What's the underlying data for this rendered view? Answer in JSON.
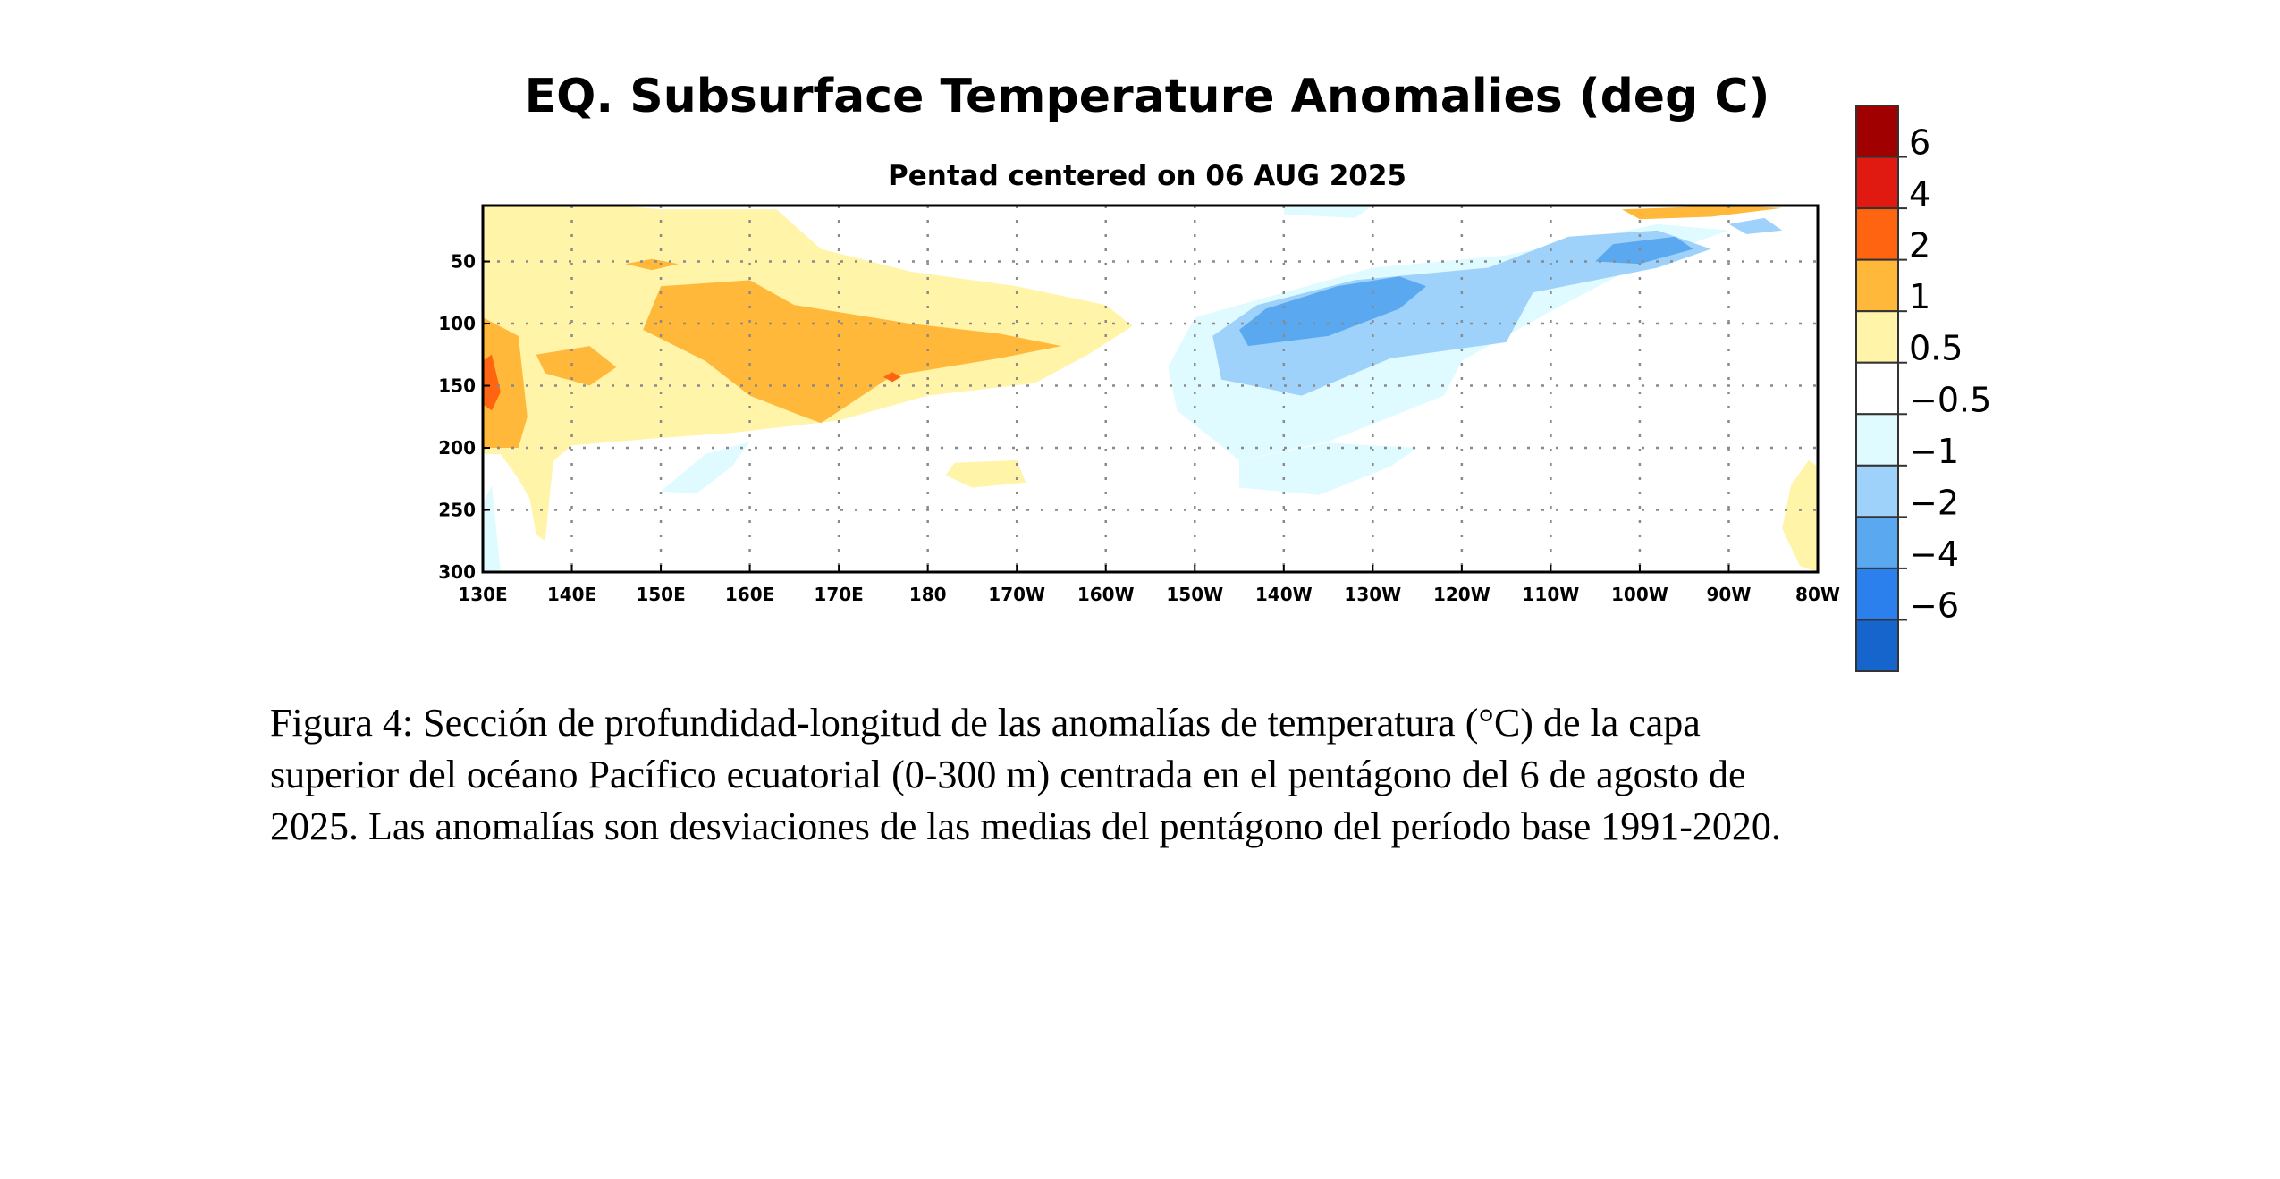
{
  "chart_data": {
    "type": "heatmap",
    "title": "EQ. Subsurface Temperature Anomalies (deg C)",
    "subtitle": "Pentad centered on 06 AUG 2025",
    "xlabel": "",
    "ylabel": "",
    "x_ticks": [
      "130E",
      "140E",
      "150E",
      "160E",
      "170E",
      "180",
      "170W",
      "160W",
      "150W",
      "140W",
      "130W",
      "120W",
      "110W",
      "100W",
      "90W",
      "80W"
    ],
    "x_tick_values": [
      130,
      140,
      150,
      160,
      170,
      180,
      190,
      200,
      210,
      220,
      230,
      240,
      250,
      260,
      270,
      280
    ],
    "xlim": [
      130,
      280
    ],
    "y_ticks": [
      "50",
      "100",
      "150",
      "200",
      "250",
      "300"
    ],
    "y_tick_values": [
      50,
      100,
      150,
      200,
      250,
      300
    ],
    "ylim": [
      300,
      5
    ],
    "grid": true,
    "colorbar": {
      "labels": [
        "6",
        "4",
        "2",
        "1",
        "0.5",
        "−0.5",
        "−1",
        "−2",
        "−4",
        "−6"
      ],
      "colors": [
        "#a00000",
        "#e01a10",
        "#ff6410",
        "#ffb83a",
        "#fff4a8",
        "#ffffff",
        "#e0fbff",
        "#9ed2fa",
        "#5aa9f0",
        "#2b80ee",
        "#1565cc"
      ]
    },
    "regions": [
      {
        "level": 0.5,
        "color": "#fff4a8",
        "points": [
          [
            130,
            5
          ],
          [
            145,
            5
          ],
          [
            150,
            8
          ],
          [
            163,
            8
          ],
          [
            168,
            40
          ],
          [
            178,
            58
          ],
          [
            190,
            70
          ],
          [
            200,
            85
          ],
          [
            203,
            102
          ],
          [
            198,
            125
          ],
          [
            192,
            148
          ],
          [
            180,
            158
          ],
          [
            170,
            178
          ],
          [
            158,
            188
          ],
          [
            150,
            192
          ],
          [
            140,
            198
          ],
          [
            138,
            210
          ],
          [
            136,
            250
          ],
          [
            134,
            225
          ],
          [
            132,
            205
          ],
          [
            130,
            205
          ]
        ]
      },
      {
        "level": 1,
        "color": "#ffb83a",
        "points": [
          [
            130,
            95
          ],
          [
            134,
            110
          ],
          [
            135,
            175
          ],
          [
            134,
            200
          ],
          [
            130,
            200
          ]
        ]
      },
      {
        "level": 1,
        "color": "#ffb83a",
        "points": [
          [
            150,
            70
          ],
          [
            160,
            65
          ],
          [
            165,
            85
          ],
          [
            178,
            100
          ],
          [
            188,
            108
          ],
          [
            195,
            118
          ],
          [
            188,
            128
          ],
          [
            176,
            142
          ],
          [
            168,
            180
          ],
          [
            165,
            172
          ],
          [
            160,
            158
          ],
          [
            155,
            130
          ],
          [
            148,
            105
          ]
        ]
      },
      {
        "level": 1,
        "color": "#ffb83a",
        "points": [
          [
            136,
            125
          ],
          [
            142,
            118
          ],
          [
            145,
            135
          ],
          [
            142,
            150
          ],
          [
            137,
            140
          ]
        ]
      },
      {
        "level": 1,
        "color": "#ffb83a",
        "points": [
          [
            146,
            52
          ],
          [
            149,
            48
          ],
          [
            152,
            52
          ],
          [
            149,
            57
          ]
        ]
      },
      {
        "level": 1,
        "color": "#ffb83a",
        "points": [
          [
            258,
            8
          ],
          [
            270,
            5
          ],
          [
            276,
            7
          ],
          [
            268,
            14
          ],
          [
            260,
            16
          ]
        ]
      },
      {
        "level": 2,
        "color": "#ff6410",
        "points": [
          [
            130,
            130
          ],
          [
            131,
            125
          ],
          [
            132,
            155
          ],
          [
            131,
            170
          ],
          [
            130,
            165
          ]
        ]
      },
      {
        "level": 2,
        "color": "#ff6410",
        "points": [
          [
            175,
            143
          ],
          [
            176,
            139
          ],
          [
            177,
            143
          ],
          [
            176,
            147
          ]
        ]
      },
      {
        "level": 0.5,
        "color": "#fff4a8",
        "points": [
          [
            183,
            212
          ],
          [
            190,
            210
          ],
          [
            191,
            228
          ],
          [
            185,
            232
          ],
          [
            182,
            222
          ]
        ]
      },
      {
        "level": 0.5,
        "color": "#fff4a8",
        "points": [
          [
            277,
            230
          ],
          [
            279,
            210
          ],
          [
            280,
            215
          ],
          [
            280,
            300
          ],
          [
            278,
            295
          ],
          [
            276,
            265
          ]
        ]
      },
      {
        "level": 0.5,
        "color": "#fff4a8",
        "points": [
          [
            136,
            195
          ],
          [
            138,
            205
          ],
          [
            137,
            275
          ],
          [
            136,
            270
          ],
          [
            135,
            230
          ]
        ]
      },
      {
        "level": -0.5,
        "color": "#e0fbff",
        "points": [
          [
            220,
            5
          ],
          [
            230,
            5
          ],
          [
            228,
            15
          ],
          [
            220,
            12
          ]
        ]
      },
      {
        "level": -0.5,
        "color": "#e0fbff",
        "points": [
          [
            210,
            95
          ],
          [
            230,
            55
          ],
          [
            245,
            45
          ],
          [
            262,
            20
          ],
          [
            270,
            25
          ],
          [
            262,
            45
          ],
          [
            250,
            90
          ],
          [
            240,
            130
          ],
          [
            238,
            158
          ],
          [
            225,
            195
          ],
          [
            215,
            210
          ],
          [
            208,
            170
          ],
          [
            207,
            135
          ]
        ]
      },
      {
        "level": -0.5,
        "color": "#e0fbff",
        "points": [
          [
            215,
            210
          ],
          [
            225,
            196
          ],
          [
            235,
            200
          ],
          [
            232,
            215
          ],
          [
            224,
            238
          ],
          [
            215,
            232
          ]
        ]
      },
      {
        "level": -0.5,
        "color": "#e0fbff",
        "points": [
          [
            150,
            235
          ],
          [
            155,
            205
          ],
          [
            160,
            195
          ],
          [
            158,
            215
          ],
          [
            154,
            237
          ]
        ]
      },
      {
        "level": -0.5,
        "color": "#e0fbff",
        "points": [
          [
            131,
            230
          ],
          [
            132,
            300
          ],
          [
            130,
            300
          ],
          [
            130,
            245
          ]
        ]
      },
      {
        "level": -1,
        "color": "#9ed2fa",
        "points": [
          [
            212,
            110
          ],
          [
            217,
            85
          ],
          [
            228,
            65
          ],
          [
            243,
            55
          ],
          [
            252,
            30
          ],
          [
            262,
            25
          ],
          [
            268,
            40
          ],
          [
            262,
            55
          ],
          [
            248,
            75
          ],
          [
            245,
            115
          ],
          [
            232,
            128
          ],
          [
            222,
            158
          ],
          [
            213,
            145
          ]
        ]
      },
      {
        "level": -1,
        "color": "#9ed2fa",
        "points": [
          [
            270,
            20
          ],
          [
            274,
            15
          ],
          [
            276,
            25
          ],
          [
            272,
            28
          ]
        ]
      },
      {
        "level": -2,
        "color": "#5aa9f0",
        "points": [
          [
            215,
            105
          ],
          [
            218,
            88
          ],
          [
            226,
            70
          ],
          [
            233,
            62
          ],
          [
            236,
            70
          ],
          [
            233,
            88
          ],
          [
            225,
            110
          ],
          [
            216,
            118
          ]
        ]
      },
      {
        "level": -2,
        "color": "#5aa9f0",
        "points": [
          [
            255,
            50
          ],
          [
            257,
            36
          ],
          [
            264,
            30
          ],
          [
            266,
            40
          ],
          [
            260,
            52
          ]
        ]
      }
    ]
  },
  "caption": {
    "line1": "Figura 4: Sección de profundidad-longitud de las anomalías de temperatura (°C) de la capa",
    "line2": "superior del océano Pacífico ecuatorial (0-300 m) centrada en el pentágono del 6 de agosto de",
    "line3": "2025. Las anomalías son desviaciones de las medias del pentágono del período base 1991-2020."
  }
}
